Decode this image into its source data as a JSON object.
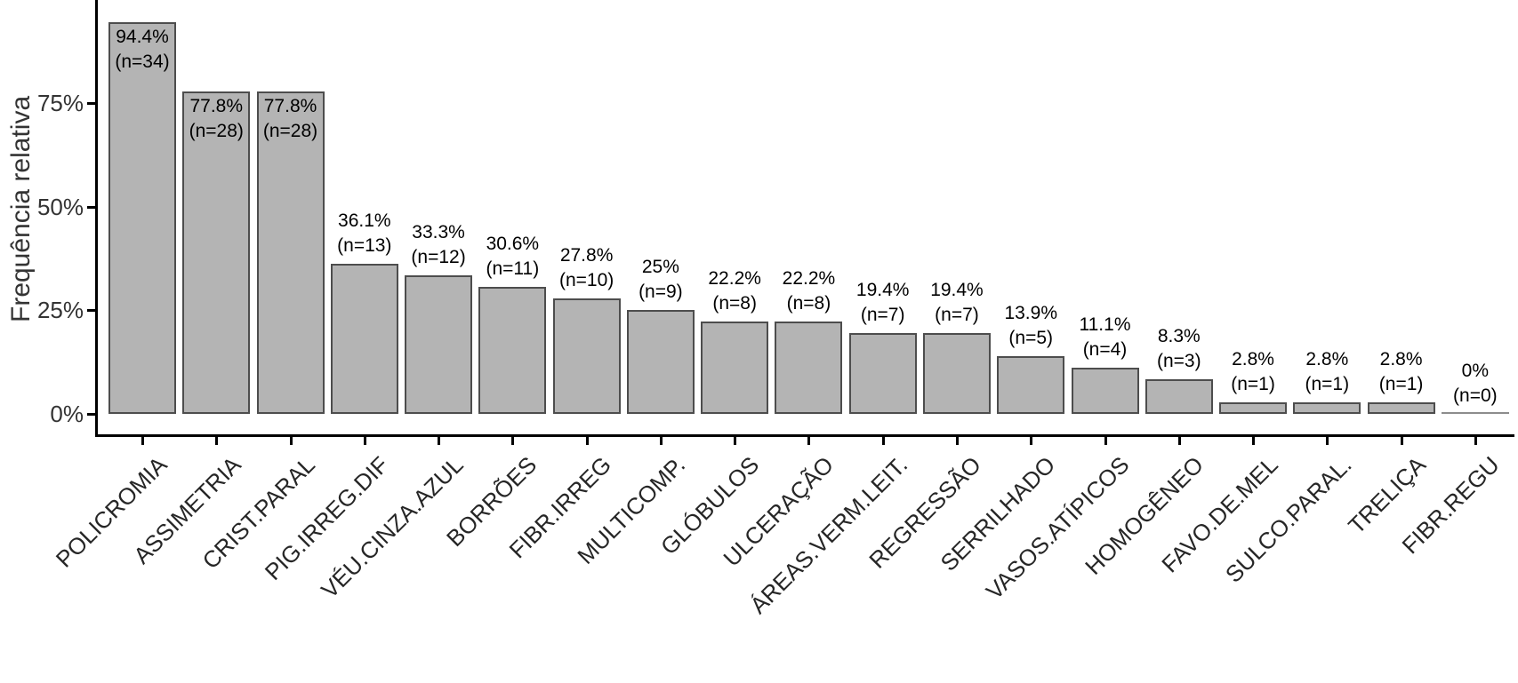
{
  "chart_data": {
    "type": "bar",
    "title": "",
    "xlabel": "",
    "ylabel": "Frequência relativa",
    "ylim": [
      0,
      100
    ],
    "grid": false,
    "legend": false,
    "bar_color": "#b4b4b4",
    "bar_border_color": "#4d4d4d",
    "axis_color": "#000000",
    "y_ticks": [
      {
        "value": 0,
        "label": "0%"
      },
      {
        "value": 25,
        "label": "25%"
      },
      {
        "value": 50,
        "label": "50%"
      },
      {
        "value": 75,
        "label": "75%"
      }
    ],
    "categories": [
      "POLICROMIA",
      "ASSIMETRIA",
      "CRIST.PARAL",
      "PIG.IRREG.DIF",
      "VÉU.CINZA.AZUL",
      "BORRÕES",
      "FIBR.IRREG",
      "MULTICOMP.",
      "GLÓBULOS",
      "ULCERAÇÃO",
      "ÁREAS.VERM.LEIT.",
      "REGRESSÃO",
      "SERRILHADO",
      "VASOS.ATÍPICOS",
      "HOMOGÊNEO",
      "FAVO.DE.MEL",
      "SULCO.PARAL.",
      "TRELIÇA",
      "FIBR.REGU"
    ],
    "values": [
      94.4,
      77.8,
      77.8,
      36.1,
      33.3,
      30.6,
      27.8,
      25,
      22.2,
      22.2,
      19.4,
      19.4,
      13.9,
      11.1,
      8.3,
      2.8,
      2.8,
      2.8,
      0
    ],
    "counts": [
      34,
      28,
      28,
      13,
      12,
      11,
      10,
      9,
      8,
      8,
      7,
      7,
      5,
      4,
      3,
      1,
      1,
      1,
      0
    ],
    "pct_labels": [
      "94.4%",
      "77.8%",
      "77.8%",
      "36.1%",
      "33.3%",
      "30.6%",
      "27.8%",
      "25%",
      "22.2%",
      "22.2%",
      "19.4%",
      "19.4%",
      "13.9%",
      "11.1%",
      "8.3%",
      "2.8%",
      "2.8%",
      "2.8%",
      "0%"
    ],
    "n_labels": [
      "(n=34)",
      "(n=28)",
      "(n=28)",
      "(n=13)",
      "(n=12)",
      "(n=11)",
      "(n=10)",
      "(n=9)",
      "(n=8)",
      "(n=8)",
      "(n=7)",
      "(n=7)",
      "(n=5)",
      "(n=4)",
      "(n=3)",
      "(n=1)",
      "(n=1)",
      "(n=1)",
      "(n=0)"
    ]
  }
}
